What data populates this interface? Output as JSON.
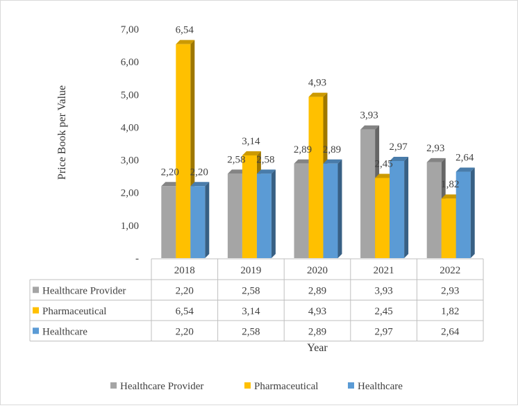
{
  "chart_data": {
    "type": "bar",
    "style": "3d-clustered-column-with-data-table",
    "categories": [
      "2018",
      "2019",
      "2020",
      "2021",
      "2022"
    ],
    "series": [
      {
        "name": "Healthcare Provider",
        "color": "#a5a5a5",
        "values": [
          2.2,
          2.58,
          2.89,
          3.93,
          2.93
        ],
        "labels": [
          "2,20",
          "2,58",
          "2,89",
          "3,93",
          "2,93"
        ]
      },
      {
        "name": "Pharmaceutical",
        "color": "#ffc000",
        "values": [
          6.54,
          3.14,
          4.93,
          2.45,
          1.82
        ],
        "labels": [
          "6,54",
          "3,14",
          "4,93",
          "2,45",
          "1,82"
        ]
      },
      {
        "name": "Healthcare",
        "color": "#5b9bd5",
        "values": [
          2.2,
          2.58,
          2.89,
          2.97,
          2.64
        ],
        "labels": [
          "2,20",
          "2,58",
          "2,89",
          "2,97",
          "2,64"
        ]
      }
    ],
    "ylim": [
      0,
      7
    ],
    "yticks": [
      0,
      1,
      2,
      3,
      4,
      5,
      6,
      7
    ],
    "ytick_labels": [
      "-",
      "1,00",
      "2,00",
      "3,00",
      "4,00",
      "5,00",
      "6,00",
      "7,00"
    ],
    "xlabel": "Year",
    "ylabel": "Price Book per Value",
    "legend_position": "bottom",
    "grid": false
  }
}
